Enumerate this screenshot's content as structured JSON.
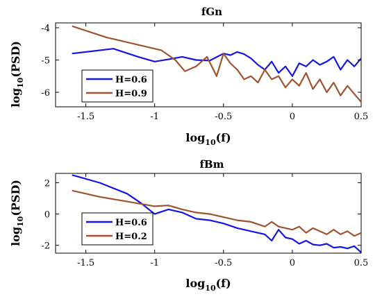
{
  "chart_data": [
    {
      "type": "line",
      "title": "fGn",
      "xlabel": "log10(f)",
      "ylabel": "log10(PSD)",
      "xlim": [
        -1.72,
        0.5
      ],
      "ylim": [
        -6.45,
        -3.85
      ],
      "xticks": [
        "-1.5",
        "-1",
        "-0.5",
        "0",
        "0.5"
      ],
      "xtick_values": [
        -1.5,
        -1,
        -0.5,
        0,
        0.5
      ],
      "yticks": [
        "-4",
        "-5",
        "-6"
      ],
      "ytick_values": [
        -4,
        -5,
        -6
      ],
      "legend_position": "bottom-left",
      "series": [
        {
          "name": "H=0.6",
          "color": "#1414e6",
          "x": [
            -1.6,
            -1.3,
            -1.12,
            -1.0,
            -0.9,
            -0.8,
            -0.7,
            -0.6,
            -0.5,
            -0.45,
            -0.4,
            -0.35,
            -0.3,
            -0.25,
            -0.2,
            -0.15,
            -0.1,
            -0.05,
            0.0,
            0.05,
            0.1,
            0.15,
            0.2,
            0.25,
            0.3,
            0.35,
            0.4,
            0.45,
            0.5
          ],
          "y": [
            -4.8,
            -4.65,
            -4.9,
            -5.05,
            -4.98,
            -4.9,
            -5.0,
            -5.02,
            -4.8,
            -4.85,
            -4.75,
            -4.82,
            -4.95,
            -5.15,
            -5.3,
            -5.05,
            -5.4,
            -5.2,
            -5.5,
            -5.1,
            -5.2,
            -5.0,
            -5.15,
            -5.05,
            -4.9,
            -5.3,
            -5.0,
            -5.2,
            -4.95
          ]
        },
        {
          "name": "H=0.9",
          "color": "#a0522d",
          "x": [
            -1.6,
            -1.35,
            -1.1,
            -0.95,
            -0.85,
            -0.78,
            -0.7,
            -0.62,
            -0.55,
            -0.5,
            -0.45,
            -0.4,
            -0.35,
            -0.3,
            -0.25,
            -0.2,
            -0.15,
            -0.1,
            -0.05,
            0.0,
            0.05,
            0.1,
            0.15,
            0.2,
            0.25,
            0.3,
            0.35,
            0.4,
            0.45,
            0.5
          ],
          "y": [
            -3.95,
            -4.3,
            -4.55,
            -4.7,
            -5.0,
            -5.35,
            -5.2,
            -4.9,
            -5.5,
            -4.8,
            -5.1,
            -5.3,
            -5.6,
            -5.5,
            -5.7,
            -5.3,
            -5.6,
            -5.5,
            -5.85,
            -5.6,
            -5.8,
            -5.4,
            -5.9,
            -5.6,
            -6.0,
            -5.7,
            -6.1,
            -5.8,
            -6.05,
            -6.3
          ]
        }
      ]
    },
    {
      "type": "line",
      "title": "fBm",
      "xlabel": "log10(f)",
      "ylabel": "log10(PSD)",
      "xlim": [
        -1.72,
        0.5
      ],
      "ylim": [
        -2.5,
        2.6
      ],
      "xticks": [
        "-1.5",
        "-1",
        "-0.5",
        "0",
        "0.5"
      ],
      "xtick_values": [
        -1.5,
        -1,
        -0.5,
        0,
        0.5
      ],
      "yticks": [
        "2",
        "0",
        "-2"
      ],
      "ytick_values": [
        2,
        0,
        -2
      ],
      "legend_position": "bottom-left",
      "series": [
        {
          "name": "H=0.6",
          "color": "#1414e6",
          "x": [
            -1.6,
            -1.4,
            -1.2,
            -1.1,
            -1.0,
            -0.9,
            -0.8,
            -0.7,
            -0.6,
            -0.5,
            -0.4,
            -0.3,
            -0.2,
            -0.15,
            -0.1,
            -0.05,
            0.0,
            0.05,
            0.1,
            0.15,
            0.2,
            0.25,
            0.3,
            0.35,
            0.4,
            0.45,
            0.5
          ],
          "y": [
            2.5,
            2.0,
            1.3,
            0.7,
            0.0,
            0.3,
            0.1,
            -0.3,
            -0.4,
            -0.6,
            -0.9,
            -1.1,
            -1.3,
            -1.7,
            -1.0,
            -1.5,
            -1.6,
            -1.9,
            -1.7,
            -1.95,
            -2.0,
            -1.9,
            -2.15,
            -2.1,
            -2.2,
            -2.05,
            -2.45
          ]
        },
        {
          "name": "H=0.2",
          "color": "#a0522d",
          "x": [
            -1.6,
            -1.4,
            -1.2,
            -1.0,
            -0.9,
            -0.8,
            -0.7,
            -0.6,
            -0.5,
            -0.4,
            -0.3,
            -0.2,
            -0.15,
            -0.1,
            -0.05,
            0.0,
            0.05,
            0.1,
            0.15,
            0.2,
            0.25,
            0.3,
            0.35,
            0.4,
            0.45,
            0.5
          ],
          "y": [
            1.5,
            1.1,
            0.8,
            0.5,
            0.55,
            0.3,
            0.1,
            0.0,
            -0.2,
            -0.4,
            -0.5,
            -0.8,
            -0.5,
            -0.8,
            -0.9,
            -1.0,
            -0.8,
            -1.2,
            -0.9,
            -1.1,
            -1.3,
            -1.0,
            -1.3,
            -1.1,
            -1.4,
            -1.2
          ]
        }
      ]
    }
  ]
}
